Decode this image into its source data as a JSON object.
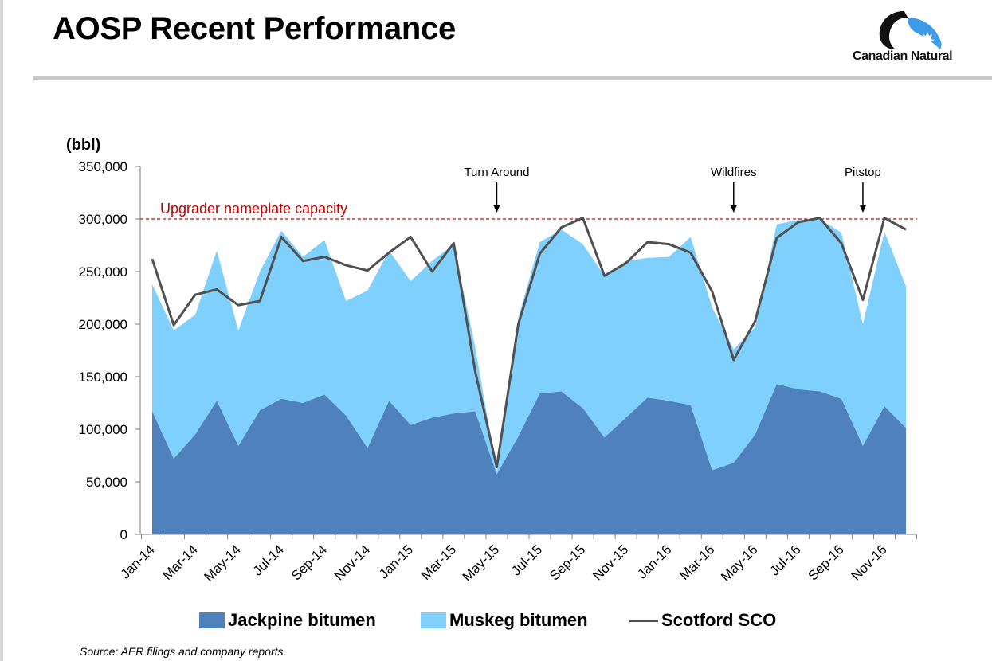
{
  "page": {
    "title": "AOSP Recent Performance",
    "logo_text": "Canadian Natural",
    "source": "Source: AER filings and company reports."
  },
  "colors": {
    "jackpine": "#4f81bd",
    "muskeg": "#7fd0fd",
    "scotford": "#505050",
    "capacity": "#cc0000"
  },
  "chart_data": {
    "type": "area",
    "ylabel": "(bbl)",
    "ylim": [
      0,
      350000
    ],
    "yticks": [
      0,
      50000,
      100000,
      150000,
      200000,
      250000,
      300000,
      350000
    ],
    "ytick_labels": [
      "0",
      "50,000",
      "100,000",
      "150,000",
      "200,000",
      "250,000",
      "300,000",
      "350,000"
    ],
    "categories": [
      "Jan-14",
      "Feb-14",
      "Mar-14",
      "Apr-14",
      "May-14",
      "Jun-14",
      "Jul-14",
      "Aug-14",
      "Sep-14",
      "Oct-14",
      "Nov-14",
      "Dec-14",
      "Jan-15",
      "Feb-15",
      "Mar-15",
      "Apr-15",
      "May-15",
      "Jun-15",
      "Jul-15",
      "Aug-15",
      "Sep-15",
      "Oct-15",
      "Nov-15",
      "Dec-15",
      "Jan-16",
      "Feb-16",
      "Mar-16",
      "Apr-16",
      "May-16",
      "Jun-16",
      "Jul-16",
      "Aug-16",
      "Sep-16",
      "Oct-16",
      "Nov-16",
      "Dec-16"
    ],
    "xtick_labels": [
      "Jan-14",
      "Mar-14",
      "May-14",
      "Jul-14",
      "Sep-14",
      "Nov-14",
      "Jan-15",
      "Mar-15",
      "May-15",
      "Jul-15",
      "Sep-15",
      "Nov-15",
      "Jan-16",
      "Mar-16",
      "May-16",
      "Jul-16",
      "Sep-16",
      "Nov-16"
    ],
    "series": [
      {
        "name": "Jackpine bitumen",
        "kind": "area",
        "stacked": true,
        "values": [
          117000,
          72000,
          95000,
          127000,
          84000,
          118000,
          129000,
          125000,
          133000,
          113000,
          82000,
          127000,
          104000,
          111000,
          115000,
          117000,
          57000,
          93000,
          134000,
          136000,
          120000,
          92000,
          111000,
          130000,
          127000,
          123000,
          61000,
          68000,
          95000,
          143000,
          138000,
          136000,
          129000,
          84000,
          122000,
          101000
        ]
      },
      {
        "name": "Muskeg bitumen",
        "kind": "area",
        "stacked": true,
        "values": [
          121000,
          122000,
          114000,
          143000,
          110000,
          132000,
          160000,
          139000,
          147000,
          109000,
          150000,
          143000,
          137000,
          149000,
          161000,
          61000,
          3000,
          113000,
          144000,
          154000,
          156000,
          154000,
          149000,
          133000,
          137000,
          160000,
          155000,
          108000,
          102000,
          152000,
          161000,
          164000,
          158000,
          116000,
          166000,
          135000
        ]
      },
      {
        "name": "Scotford SCO",
        "kind": "line",
        "values": [
          262000,
          199000,
          228000,
          233000,
          218000,
          222000,
          283000,
          260000,
          264000,
          256000,
          251000,
          268000,
          283000,
          250000,
          277000,
          155000,
          64000,
          200000,
          267000,
          292000,
          301000,
          246000,
          258000,
          278000,
          276000,
          268000,
          231000,
          166000,
          203000,
          282000,
          297000,
          301000,
          277000,
          223000,
          301000,
          290000
        ]
      }
    ],
    "reference_lines": [
      {
        "label": "Upgrader nameplate capacity",
        "value": 300000
      }
    ],
    "annotations": [
      {
        "text": "Turn Around",
        "x": "May-15"
      },
      {
        "text": "Wildfires",
        "x": "Apr-16"
      },
      {
        "text": "Pitstop",
        "x": "Oct-16"
      }
    ],
    "legend": {
      "position": "bottom"
    }
  }
}
